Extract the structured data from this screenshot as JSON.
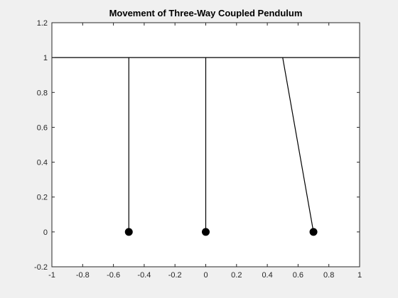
{
  "chart_data": {
    "type": "line",
    "title": "Movement of Three-Way Coupled Pendulum",
    "xlabel": "",
    "ylabel": "",
    "xlim": [
      -1,
      1
    ],
    "ylim": [
      -0.2,
      1.2
    ],
    "xticks": [
      -1,
      -0.8,
      -0.6,
      -0.4,
      -0.2,
      0,
      0.2,
      0.4,
      0.6,
      0.8,
      1
    ],
    "xtick_labels": [
      "-1",
      "-0.8",
      "-0.6",
      "-0.4",
      "-0.2",
      "0",
      "0.2",
      "0.4",
      "0.6",
      "0.8",
      "1"
    ],
    "yticks": [
      -0.2,
      0,
      0.2,
      0.4,
      0.6,
      0.8,
      1,
      1.2
    ],
    "ytick_labels": [
      "-0.2",
      "0",
      "0.2",
      "0.4",
      "0.6",
      "0.8",
      "1",
      "1.2"
    ],
    "grid": false,
    "support_line": {
      "x": [
        -1,
        1
      ],
      "y": [
        1,
        1
      ]
    },
    "pendulums": [
      {
        "pivot": [
          -0.5,
          1
        ],
        "bob": [
          -0.5,
          0
        ]
      },
      {
        "pivot": [
          0,
          1
        ],
        "bob": [
          0,
          0
        ]
      },
      {
        "pivot": [
          0.5,
          1
        ],
        "bob": [
          0.7,
          0
        ]
      }
    ],
    "colors": {
      "line": "#000000",
      "bob": "#000000",
      "axes_bg": "#ffffff",
      "figure_bg": "#f0f0f0"
    }
  }
}
